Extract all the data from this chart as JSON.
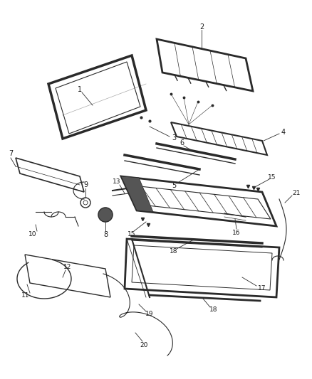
{
  "bg_color": "#ffffff",
  "line_color": "#2a2a2a",
  "text_color": "#1a1a1a",
  "figsize": [
    4.38,
    5.33
  ],
  "dpi": 100,
  "xlim": [
    0,
    438
  ],
  "ylim": [
    0,
    533
  ]
}
